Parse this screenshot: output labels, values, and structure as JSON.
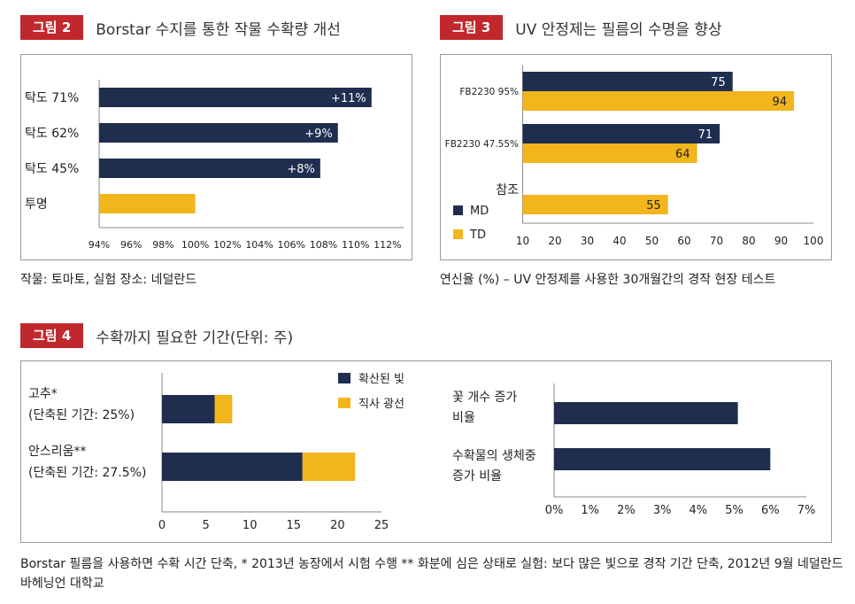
{
  "figure2": {
    "badge": "그림 2",
    "title": "Borstar 수지를 통한 작물 수확량 개선",
    "caption": "작물: 토마토, 실험 장소: 네덜란드"
  },
  "figure3": {
    "badge": "그림 3",
    "title": "UV 안정제는 필름의 수명을 향상",
    "caption": "연신율 (%) – UV 안정제를 사용한 30개월간의 경작 현장 테스트"
  },
  "figure4": {
    "badge": "그림 4",
    "title": "수확까지 필요한 기간(단위: 주)",
    "caption": "Borstar 필름을 사용하면 수확 시간 단축, * 2013년 농장에서 시험 수행 ** 화분에 심은 상태로 실험: 보다 많은 빛으로 경작 기간 단축, 2012년 9월 네덜란드 바헤닝언 대학교"
  },
  "colors": {
    "navy": "#1f2d4f",
    "gold": "#f2b51c",
    "badge_red": "#c0282d"
  },
  "chart_data": [
    {
      "id": "fig2",
      "type": "bar",
      "orientation": "horizontal",
      "categories": [
        "탁도 71%",
        "탁도 62%",
        "탁도 45%",
        "투명"
      ],
      "values": [
        111.0,
        108.9,
        107.8,
        100.0
      ],
      "data_labels": [
        "+11%",
        "+9%",
        "+8%",
        ""
      ],
      "bar_colors": [
        "#1f2d4f",
        "#1f2d4f",
        "#1f2d4f",
        "#f2b51c"
      ],
      "xlim": [
        94,
        113
      ],
      "xticks": [
        94,
        96,
        98,
        100,
        102,
        104,
        106,
        108,
        110,
        112
      ],
      "xtick_labels": [
        "94%",
        "96%",
        "98%",
        "100%",
        "102%",
        "104%",
        "106%",
        "108%",
        "110%",
        "112%"
      ]
    },
    {
      "id": "fig3",
      "type": "bar",
      "orientation": "horizontal",
      "categories": [
        "FB2230 95%",
        "FB2230 47.55%",
        "참조"
      ],
      "series": [
        {
          "name": "MD",
          "color": "#1f2d4f",
          "values": [
            75,
            71,
            10
          ]
        },
        {
          "name": "TD",
          "color": "#f2b51c",
          "values": [
            94,
            64,
            55
          ]
        }
      ],
      "xlim": [
        0,
        100
      ],
      "xticks": [
        10,
        20,
        30,
        40,
        50,
        60,
        70,
        80,
        90,
        100
      ],
      "xtick_labels": [
        "10",
        "20",
        "30",
        "40",
        "50",
        "60",
        "70",
        "80",
        "90",
        "100"
      ],
      "legend": "bottom-left"
    },
    {
      "id": "fig4a",
      "type": "bar",
      "orientation": "horizontal",
      "stacked": true,
      "categories": [
        {
          "line1": "고추*",
          "line2": "(단축된 기간: 25%)"
        },
        {
          "line1": "안스리움**",
          "line2": "(단축된 기간: 27.5%)"
        }
      ],
      "series": [
        {
          "name": "확산된 빛",
          "color": "#1f2d4f",
          "values": [
            6,
            16
          ]
        },
        {
          "name": "직사 광선",
          "color": "#f2b51c",
          "values": [
            2,
            6
          ]
        }
      ],
      "xlim": [
        0,
        25
      ],
      "xticks": [
        0,
        5,
        10,
        15,
        20,
        25
      ],
      "xtick_labels": [
        "0",
        "5",
        "10",
        "15",
        "20",
        "25"
      ],
      "legend": "top-right"
    },
    {
      "id": "fig4b",
      "type": "bar",
      "orientation": "horizontal",
      "categories": [
        {
          "line1": "꽃 개수 증가",
          "line2": "비율"
        },
        {
          "line1": "수확물의 생체중",
          "line2": "증가 비율"
        }
      ],
      "values": [
        5.1,
        6.0
      ],
      "bar_colors": [
        "#1f2d4f",
        "#1f2d4f"
      ],
      "xlim": [
        0,
        7
      ],
      "xticks": [
        0,
        1,
        2,
        3,
        4,
        5,
        6,
        7
      ],
      "xtick_labels": [
        "0%",
        "1%",
        "2%",
        "3%",
        "4%",
        "5%",
        "6%",
        "7%"
      ]
    }
  ]
}
